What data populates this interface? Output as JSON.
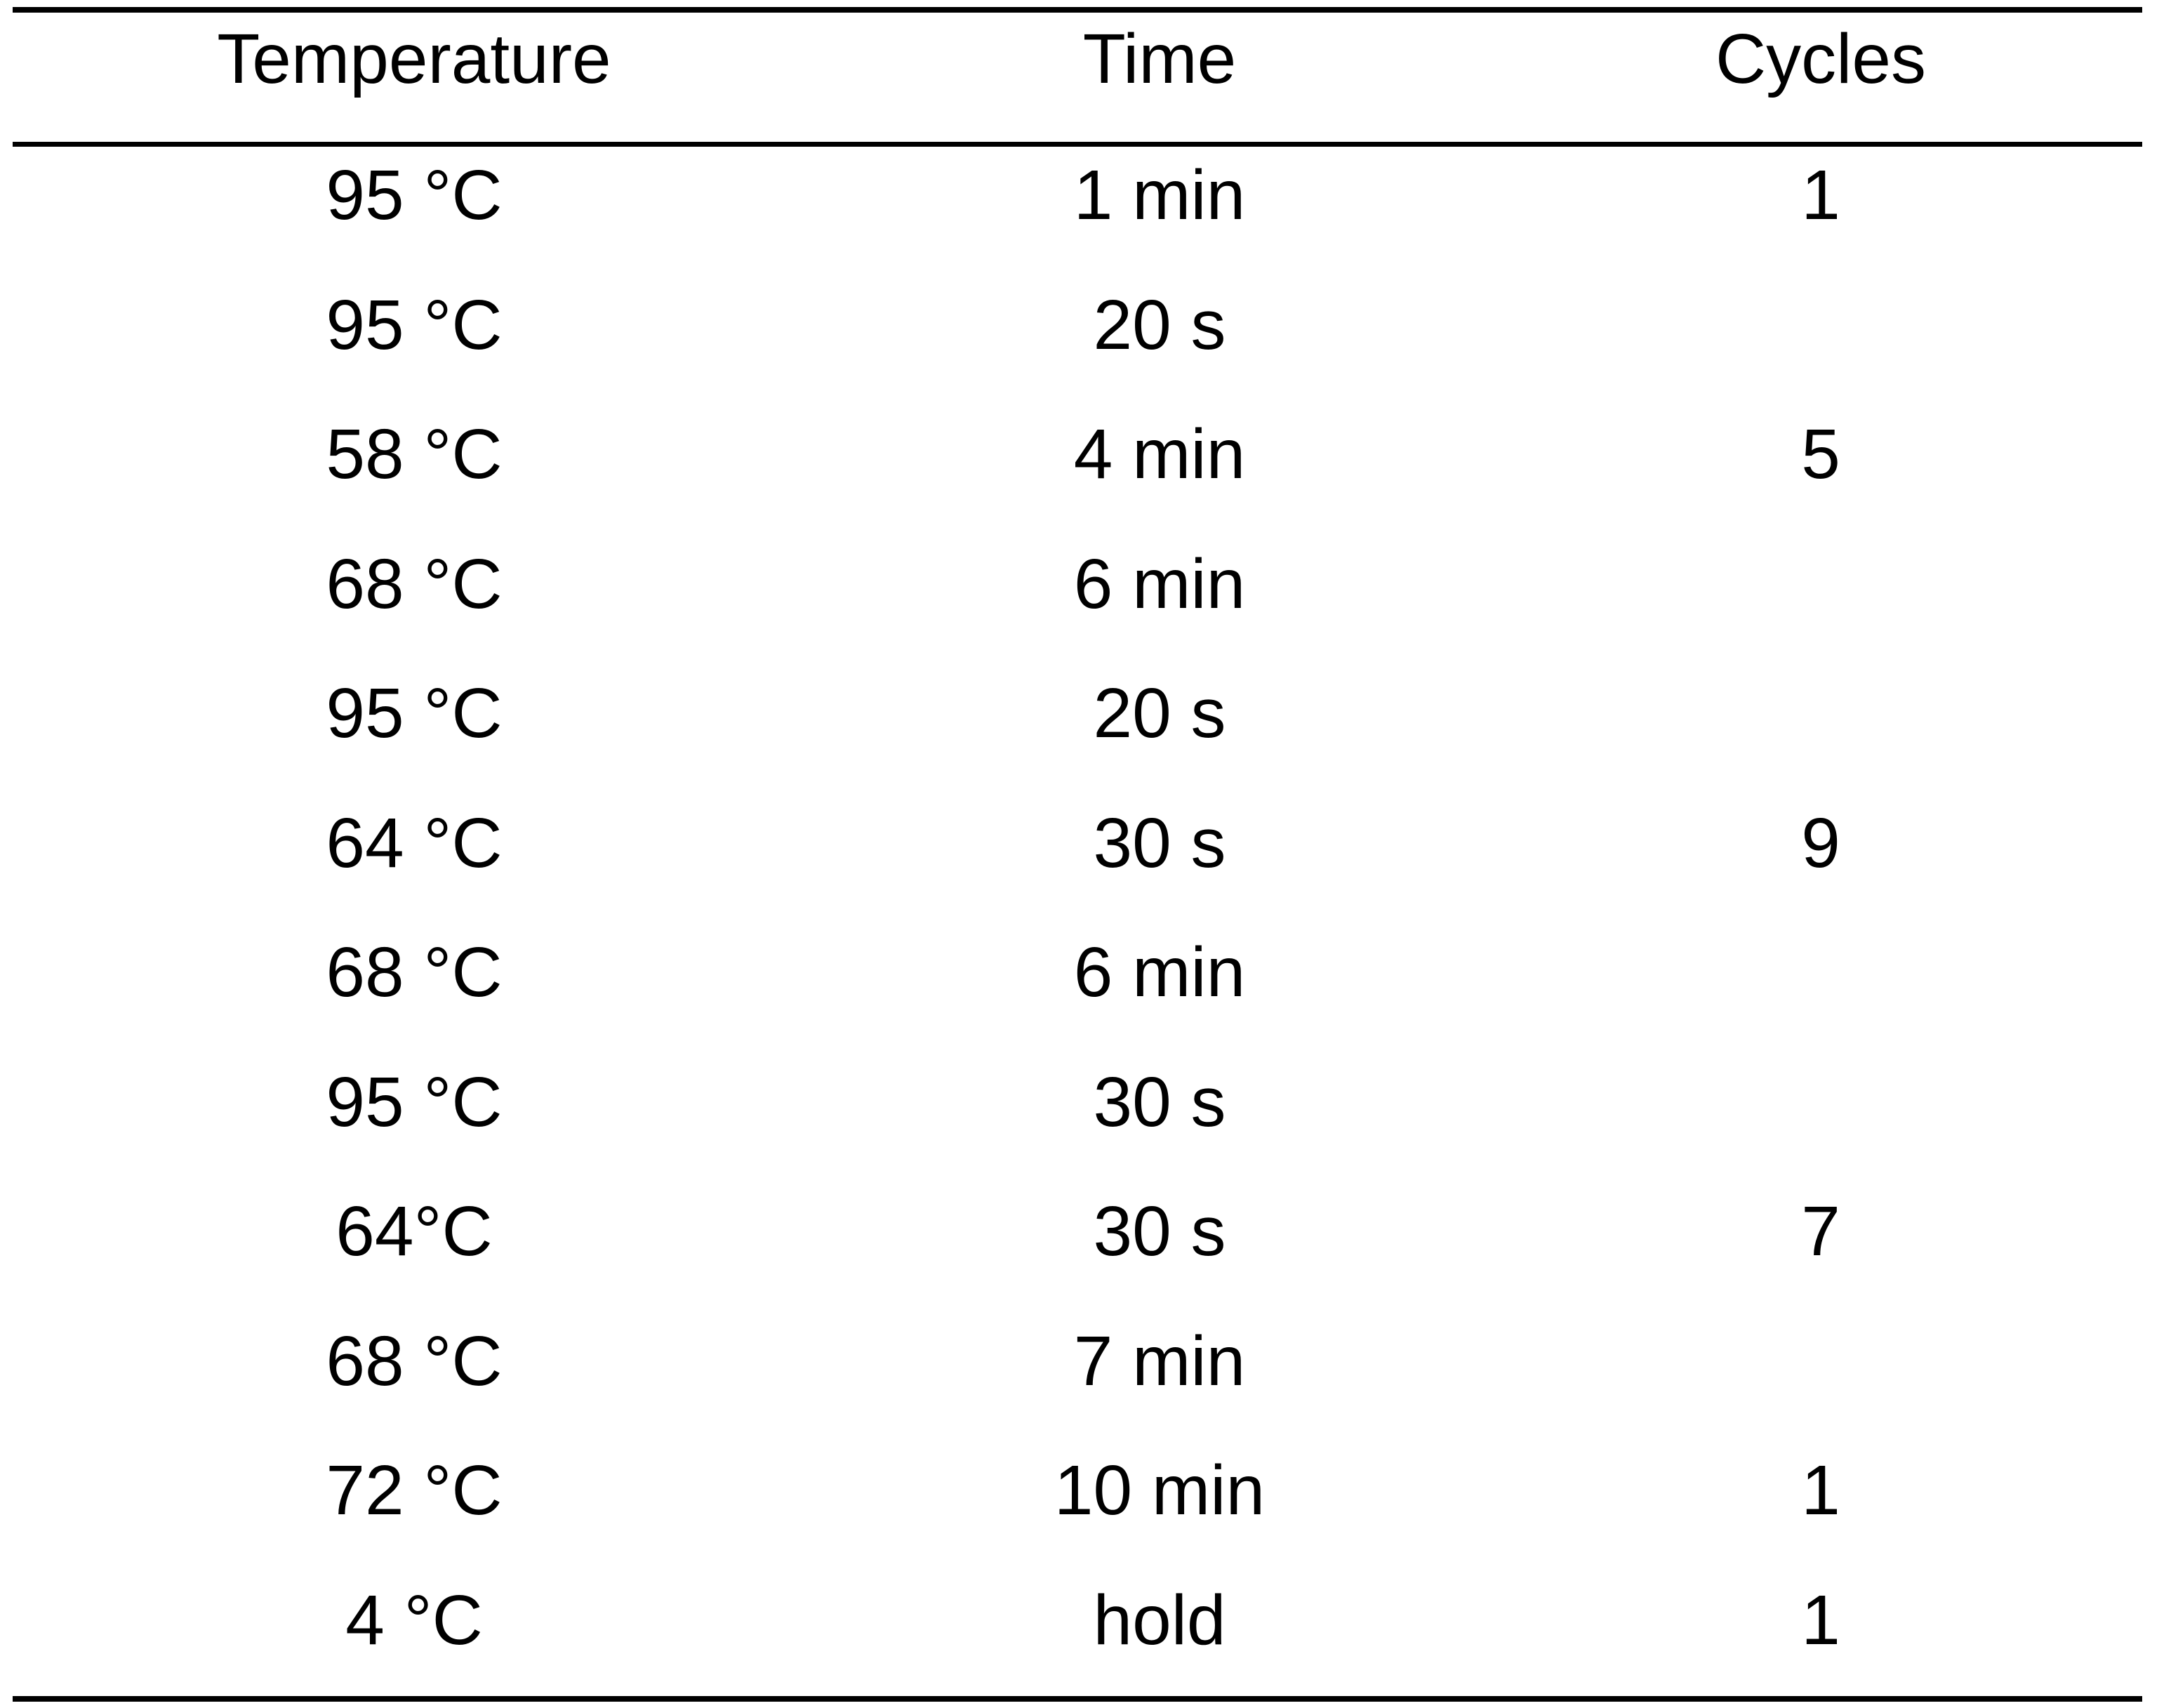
{
  "table": {
    "headers": {
      "temperature": "Temperature",
      "time": "Time",
      "cycles": "Cycles"
    },
    "rows": [
      {
        "temperature": "95 °C",
        "time": "1 min",
        "cycles": "1"
      },
      {
        "temperature": "95 °C",
        "time": "20 s",
        "cycles": ""
      },
      {
        "temperature": "58 °C",
        "time": "4 min",
        "cycles": "5"
      },
      {
        "temperature": "68 °C",
        "time": "6 min",
        "cycles": ""
      },
      {
        "temperature": "95 °C",
        "time": "20 s",
        "cycles": ""
      },
      {
        "temperature": "64 °C",
        "time": "30 s",
        "cycles": "9"
      },
      {
        "temperature": "68 °C",
        "time": "6 min",
        "cycles": ""
      },
      {
        "temperature": "95 °C",
        "time": "30 s",
        "cycles": ""
      },
      {
        "temperature": "64°C",
        "time": "30 s",
        "cycles": "7"
      },
      {
        "temperature": "68 °C",
        "time": "7 min",
        "cycles": ""
      },
      {
        "temperature": "72 °C",
        "time": "10 min",
        "cycles": "1"
      },
      {
        "temperature": "4 °C",
        "time": "hold",
        "cycles": "1"
      }
    ]
  }
}
